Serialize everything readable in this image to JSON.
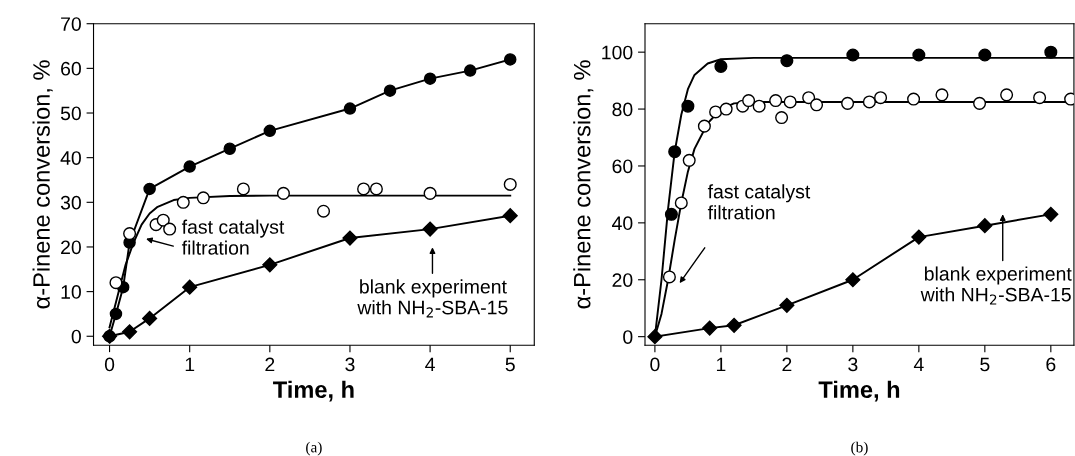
{
  "chart_data": [
    {
      "type": "line",
      "xlabel": "Time, h",
      "ylabel": "α-Pinene conversion, %",
      "xlim": [
        -0.2,
        5.3
      ],
      "ylim": [
        -2,
        70
      ],
      "xticks": [
        0,
        1,
        2,
        3,
        4,
        5
      ],
      "yticks": [
        0,
        10,
        20,
        30,
        40,
        50,
        60,
        70
      ],
      "grid": false,
      "series": [
        {
          "marker": "none",
          "line_style": "solid",
          "color": "#000000",
          "x": [
            0,
            0.1,
            0.2,
            0.3,
            0.4,
            0.5,
            0.6,
            0.8,
            1,
            1.5,
            2,
            5
          ],
          "values": [
            2,
            9,
            16,
            21,
            25,
            27.5,
            29,
            30.5,
            31,
            31.4,
            31.5,
            31.5
          ]
        },
        {
          "marker": "circle",
          "line_style": "solid",
          "color": "#000000",
          "x": [
            0,
            0.08,
            0.17,
            0.25,
            0.5,
            1,
            1.5,
            2,
            3,
            3.5,
            4,
            4.5,
            5
          ],
          "values": [
            0,
            5,
            11,
            21,
            33,
            38,
            42,
            46,
            51,
            55,
            57.7,
            59.5,
            62
          ]
        },
        {
          "type": "scatter",
          "marker": "circle",
          "color": "#ffffff",
          "x": [
            0.08,
            0.25,
            0.58,
            0.67,
            0.75,
            0.92,
            1.17,
            1.67,
            2.17,
            2.67,
            3.17,
            3.33,
            4,
            5
          ],
          "values": [
            12,
            23,
            25,
            26,
            24,
            30,
            31,
            33,
            32,
            28,
            33,
            33,
            32,
            34
          ]
        },
        {
          "marker": "diamond",
          "line_style": "solid",
          "color": "#000000",
          "x": [
            0,
            0.25,
            0.5,
            1,
            2,
            3,
            4,
            5
          ],
          "values": [
            0,
            1,
            4,
            11,
            16,
            22,
            24,
            27
          ]
        }
      ],
      "annotations": [
        "fast catalyst\nfiltration",
        "blank experiment\nwith NH$_{2}$-SBA-15",
        "(a)"
      ]
    },
    {
      "type": "line",
      "xlabel": "Time, h",
      "ylabel": "α-Pinene conversion, %",
      "xlim": [
        -0.15,
        6.35
      ],
      "ylim": [
        -3,
        110
      ],
      "xticks": [
        0,
        1,
        2,
        3,
        4,
        5,
        6
      ],
      "yticks": [
        0,
        20,
        40,
        60,
        80,
        100
      ],
      "grid": false,
      "series": [
        {
          "marker": "none",
          "line_style": "solid",
          "color": "#000000",
          "x": [
            0,
            0.1,
            0.2,
            0.3,
            0.4,
            0.5,
            0.6,
            0.8,
            1,
            1.5,
            6.35
          ],
          "values": [
            0,
            20,
            45,
            65,
            78,
            87,
            92,
            96,
            97.5,
            98,
            98
          ]
        },
        {
          "marker": "none",
          "line_style": "solid",
          "color": "#000000",
          "x": [
            0,
            0.1,
            0.2,
            0.3,
            0.4,
            0.5,
            0.6,
            0.8,
            1,
            1.2,
            1.5,
            6.35
          ],
          "values": [
            0,
            8,
            20,
            34,
            47,
            58,
            66,
            75,
            80,
            82,
            82.5,
            82.5
          ]
        },
        {
          "type": "scatter",
          "marker": "circle",
          "color": "#000000",
          "x": [
            0.25,
            0.3,
            0.5,
            1,
            2,
            3,
            4,
            5,
            6
          ],
          "values": [
            43,
            65,
            81,
            95,
            97,
            99,
            99,
            99,
            100
          ]
        },
        {
          "type": "scatter",
          "marker": "circle",
          "color": "#ffffff",
          "x": [
            0.22,
            0.4,
            0.52,
            0.75,
            0.92,
            1.08,
            1.33,
            1.42,
            1.58,
            1.83,
            1.92,
            2.05,
            2.33,
            2.45,
            2.92,
            3.25,
            3.42,
            3.92,
            4.35,
            4.92,
            5.33,
            5.83,
            6.3
          ],
          "values": [
            21,
            47,
            62,
            74,
            79,
            80,
            81,
            83,
            81,
            83,
            77,
            82.5,
            84,
            81.5,
            82,
            82.5,
            84,
            83.5,
            85,
            82,
            85,
            84,
            83.5
          ]
        },
        {
          "marker": "diamond",
          "line_style": "solid",
          "color": "#000000",
          "x": [
            0,
            0.83,
            1.2,
            2,
            3,
            4,
            5,
            6
          ],
          "values": [
            0,
            3,
            4,
            11,
            20,
            35,
            39,
            43
          ]
        }
      ],
      "annotations": [
        "fast catalyst\nfiltration",
        "blank experiment\nwith NH$_{2}$-SBA-15",
        "(b)"
      ]
    }
  ]
}
